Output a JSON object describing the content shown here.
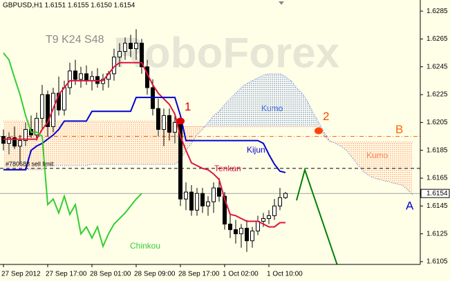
{
  "chart_data": {
    "type": "candlestick",
    "title": "GBPUSD,H1 1.6151 1.6155 1.6150 1.6154",
    "settings_label": "T9 K24 S48",
    "watermark": "RoboForex",
    "categories": [
      "27 Sep 2012",
      null,
      null,
      null,
      null,
      null,
      null,
      null,
      "27 Sep 17:00",
      null,
      null,
      null,
      null,
      null,
      null,
      null,
      "28 Sep 01:00",
      null,
      null,
      null,
      null,
      null,
      null,
      null,
      "28 Sep 09:00",
      null,
      null,
      null,
      null,
      null,
      null,
      null,
      "28 Sep 17:00",
      null,
      null,
      null,
      null,
      null,
      null,
      null,
      "1 Oct 02:00",
      null,
      null,
      null,
      null,
      null,
      null,
      null,
      "1 Oct 10:00",
      null,
      null,
      null,
      null,
      null,
      null,
      null,
      null,
      null,
      null,
      null,
      null,
      null,
      null,
      null,
      null,
      null,
      null,
      null,
      null,
      null,
      null,
      null,
      null,
      null,
      null
    ],
    "open": [
      1.6195,
      1.619,
      1.6194,
      1.6188,
      1.6192,
      1.62,
      1.6196,
      1.6208,
      1.6225,
      1.6202,
      1.6226,
      1.6214,
      1.623,
      1.6242,
      1.6236,
      1.624,
      1.6235,
      1.6238,
      1.6233,
      1.6236,
      1.624,
      1.6252,
      1.6256,
      1.6262,
      1.6258,
      1.6262,
      1.6245,
      1.623,
      1.6215,
      1.62,
      1.621,
      1.6198,
      1.6205,
      1.615,
      1.6155,
      1.6142,
      1.6154,
      1.6145,
      1.6148,
      1.6158,
      1.6152,
      1.6132,
      1.6128,
      1.6125,
      1.6129,
      1.612,
      1.6127,
      1.6134,
      1.6136,
      1.6138,
      1.6145,
      1.6151,
      null,
      null,
      null,
      null,
      null,
      null,
      null,
      null,
      null,
      null,
      null,
      null,
      null,
      null,
      null,
      null,
      null,
      null,
      null,
      null,
      null,
      null,
      null
    ],
    "high": [
      1.62,
      1.6198,
      1.6202,
      1.6196,
      1.6205,
      1.621,
      1.6212,
      1.6232,
      1.6228,
      1.623,
      1.6238,
      1.6235,
      1.6248,
      1.625,
      1.6245,
      1.6246,
      1.6242,
      1.6244,
      1.624,
      1.6242,
      1.6258,
      1.6262,
      1.6266,
      1.6268,
      1.6272,
      1.6265,
      1.625,
      1.6236,
      1.6222,
      1.6215,
      1.6215,
      1.621,
      1.6208,
      1.6162,
      1.616,
      1.6158,
      1.6158,
      1.6152,
      1.6162,
      1.6165,
      1.6155,
      1.614,
      1.6135,
      1.6132,
      1.6135,
      1.613,
      1.6138,
      1.614,
      1.6142,
      1.615,
      1.6158,
      1.6155,
      null,
      null,
      null,
      null,
      null,
      null,
      null,
      null,
      null,
      null,
      null,
      null,
      null,
      null,
      null,
      null,
      null,
      null,
      null,
      null,
      null,
      null,
      null
    ],
    "low": [
      1.6185,
      1.6182,
      1.6186,
      1.6175,
      1.6188,
      1.6194,
      1.6192,
      1.62,
      1.6195,
      1.6198,
      1.621,
      1.621,
      1.6225,
      1.6232,
      1.623,
      1.6232,
      1.6228,
      1.623,
      1.6228,
      1.623,
      1.6235,
      1.6245,
      1.625,
      1.6252,
      1.625,
      1.624,
      1.6225,
      1.621,
      1.6195,
      1.6188,
      1.6192,
      1.619,
      1.6145,
      1.6142,
      1.6138,
      1.6138,
      1.614,
      1.6138,
      1.614,
      1.6148,
      1.6128,
      1.6122,
      1.6118,
      1.6115,
      1.6112,
      1.6115,
      1.6124,
      1.613,
      1.6132,
      1.6135,
      1.6142,
      1.615,
      null,
      null,
      null,
      null,
      null,
      null,
      null,
      null,
      null,
      null,
      null,
      null,
      null,
      null,
      null,
      null,
      null,
      null,
      null,
      null,
      null,
      null,
      null
    ],
    "close": [
      1.619,
      1.6194,
      1.6188,
      1.6192,
      1.62,
      1.6196,
      1.6208,
      1.6225,
      1.6202,
      1.6226,
      1.6214,
      1.623,
      1.6242,
      1.6236,
      1.624,
      1.6235,
      1.6238,
      1.6233,
      1.6236,
      1.624,
      1.6252,
      1.6256,
      1.6262,
      1.6258,
      1.6262,
      1.6245,
      1.623,
      1.6215,
      1.62,
      1.621,
      1.6198,
      1.6205,
      1.615,
      1.6155,
      1.6142,
      1.6154,
      1.6145,
      1.6148,
      1.6158,
      1.6152,
      1.6132,
      1.6128,
      1.6125,
      1.6129,
      1.612,
      1.6127,
      1.6134,
      1.6136,
      1.6138,
      1.6145,
      1.6151,
      1.6154,
      null,
      null,
      null,
      null,
      null,
      null,
      null,
      null,
      null,
      null,
      null,
      null,
      null,
      null,
      null,
      null,
      null,
      null,
      null,
      null,
      null,
      null,
      null
    ],
    "series": [
      {
        "name": "Tenkan",
        "color": "#dc143c",
        "values": [
          1.6193,
          1.6193,
          1.6193,
          1.6193,
          1.6193,
          1.6193,
          1.6193,
          1.62,
          1.6205,
          1.6215,
          1.6225,
          1.623,
          1.6235,
          1.6235,
          1.6235,
          1.6235,
          1.6235,
          1.6235,
          1.6235,
          1.624,
          1.6245,
          1.6248,
          1.6248,
          1.6248,
          1.6248,
          1.6248,
          1.624,
          1.6232,
          1.6226,
          1.6222,
          1.6218,
          1.6211,
          1.6195,
          1.6185,
          1.6176,
          1.6174,
          1.6172,
          1.6171,
          1.6168,
          1.6164,
          1.615,
          1.6139,
          1.6138,
          1.6136,
          1.6134,
          1.6134,
          1.6134,
          1.6132,
          1.613,
          1.613,
          1.6133,
          1.6133,
          null,
          null,
          null,
          null,
          null,
          null,
          null,
          null,
          null,
          null,
          null,
          null,
          null,
          null,
          null,
          null,
          null,
          null,
          null,
          null,
          null,
          null,
          null
        ]
      },
      {
        "name": "Kijun",
        "color": "#0000cd",
        "values": [
          1.6171,
          1.6171,
          1.6171,
          1.6171,
          1.6171,
          1.6185,
          1.6188,
          1.619,
          1.6193,
          1.6196,
          1.62,
          1.6206,
          1.6206,
          1.6206,
          1.6206,
          1.6206,
          1.6213,
          1.6213,
          1.6213,
          1.6213,
          1.6213,
          1.6213,
          1.6213,
          1.6213,
          1.6223,
          1.6223,
          1.6223,
          1.6223,
          1.6223,
          1.6223,
          1.6223,
          1.6223,
          1.621,
          1.6192,
          1.6192,
          1.6192,
          1.6192,
          1.6192,
          1.6192,
          1.6192,
          1.6192,
          1.6192,
          1.6192,
          1.6192,
          1.6192,
          1.6192,
          1.6192,
          1.619,
          1.6182,
          1.6175,
          1.617,
          1.6169,
          null,
          null,
          null,
          null,
          null,
          null,
          null,
          null,
          null,
          null,
          null,
          null,
          null,
          null,
          null,
          null,
          null,
          null,
          null,
          null,
          null,
          null,
          null
        ]
      },
      {
        "name": "Chinkou",
        "color": "#32cd32",
        "values": [
          1.6255,
          1.625,
          1.6237,
          1.6225,
          1.621,
          1.6198,
          1.6198,
          1.6195,
          1.6146,
          1.615,
          1.614,
          1.6152,
          1.6139,
          1.6146,
          1.6125,
          1.613,
          1.6122,
          1.613,
          1.6116,
          1.6125,
          1.6132,
          1.6136,
          1.614,
          1.6145,
          1.615,
          1.6154,
          null,
          null,
          null,
          null,
          null,
          null,
          null,
          null,
          null,
          null,
          null,
          null,
          null,
          null,
          null,
          null,
          null,
          null,
          null,
          null,
          null,
          null,
          null,
          null,
          null,
          null,
          null,
          null,
          null,
          null,
          null,
          null,
          null,
          null,
          null,
          null,
          null,
          null,
          null,
          null,
          null,
          null,
          null,
          null,
          null,
          null,
          null,
          null,
          null
        ]
      }
    ],
    "kumo": {
      "name": "Kumo",
      "color_a": "#4169e1",
      "color_b": "#ff7f50",
      "span_a": [
        1.6171,
        1.6171,
        1.6171,
        1.6171,
        1.6171,
        1.6171,
        1.6171,
        1.6171,
        1.6174,
        1.6174,
        1.6174,
        1.6174,
        1.6174,
        1.6174,
        1.6174,
        1.6174,
        1.6175,
        1.6175,
        1.6175,
        1.6175,
        1.6175,
        1.6175,
        1.6175,
        1.6175,
        1.6175,
        1.6175,
        1.6175,
        1.6175,
        1.6175,
        1.6175,
        1.6175,
        1.6175,
        1.6178,
        1.6185,
        1.619,
        1.6196,
        1.62,
        1.6205,
        1.621,
        1.6213,
        1.6218,
        1.6222,
        1.6226,
        1.623,
        1.6233,
        1.6235,
        1.6237,
        1.6239,
        1.624,
        1.624,
        1.624,
        1.6238,
        1.6235,
        1.623,
        1.6226,
        1.622,
        1.6212,
        1.6205,
        1.6198,
        1.6192,
        1.619,
        1.6188,
        1.6185,
        1.618,
        1.6175,
        1.617,
        1.6167,
        1.6165,
        1.6164,
        1.6163,
        1.6162,
        1.6161,
        1.616,
        1.6157,
        1.6153
      ],
      "span_b": [
        1.6206,
        1.6206,
        1.6206,
        1.6206,
        1.6206,
        1.6206,
        1.6206,
        1.6206,
        1.6206,
        1.6206,
        1.6206,
        1.6206,
        1.6206,
        1.6206,
        1.6206,
        1.6206,
        1.6206,
        1.6206,
        1.6206,
        1.6206,
        1.6206,
        1.6206,
        1.6206,
        1.6206,
        1.6206,
        1.6206,
        1.6206,
        1.6206,
        1.6206,
        1.6206,
        1.6206,
        1.6206,
        1.6202,
        1.6202,
        1.6202,
        1.6202,
        1.6202,
        1.6202,
        1.6202,
        1.6202,
        1.6202,
        1.6202,
        1.6202,
        1.6202,
        1.6202,
        1.6202,
        1.6202,
        1.6202,
        1.6202,
        1.6202,
        1.6202,
        1.6202,
        1.6202,
        1.6202,
        1.6202,
        1.6202,
        1.6202,
        1.6202,
        1.6195,
        1.6191,
        1.6191,
        1.6191,
        1.6191,
        1.6191,
        1.6191,
        1.6191,
        1.6191,
        1.6191,
        1.6191,
        1.6191,
        1.6191,
        1.6191,
        1.6191,
        1.6191,
        1.6191
      ]
    },
    "levels": [
      {
        "label": "B",
        "value": 1.6195,
        "color": "#ff6600"
      },
      {
        "label": "#780688 sell limit",
        "value": 1.6172,
        "color": "#000000"
      }
    ],
    "points": [
      {
        "label": "1",
        "x": 32,
        "value": 1.6206,
        "color": "#e00000"
      },
      {
        "label": "2",
        "x": 57,
        "value": 1.6199,
        "color": "#ff4500"
      }
    ],
    "forecast": {
      "color": "#008000",
      "x": [
        53,
        54.5,
        60.5
      ],
      "values": [
        1.6149,
        1.6171,
        1.6101
      ]
    },
    "annotation": {
      "text": "A",
      "color": "#0000cd"
    },
    "current_price": 1.6154,
    "ylim": [
      1.6103,
      1.6292
    ],
    "yticks": [
      1.6285,
      1.6265,
      1.6245,
      1.6225,
      1.6205,
      1.6185,
      1.6165,
      1.6145,
      1.6125,
      1.6105
    ],
    "grid": false
  }
}
